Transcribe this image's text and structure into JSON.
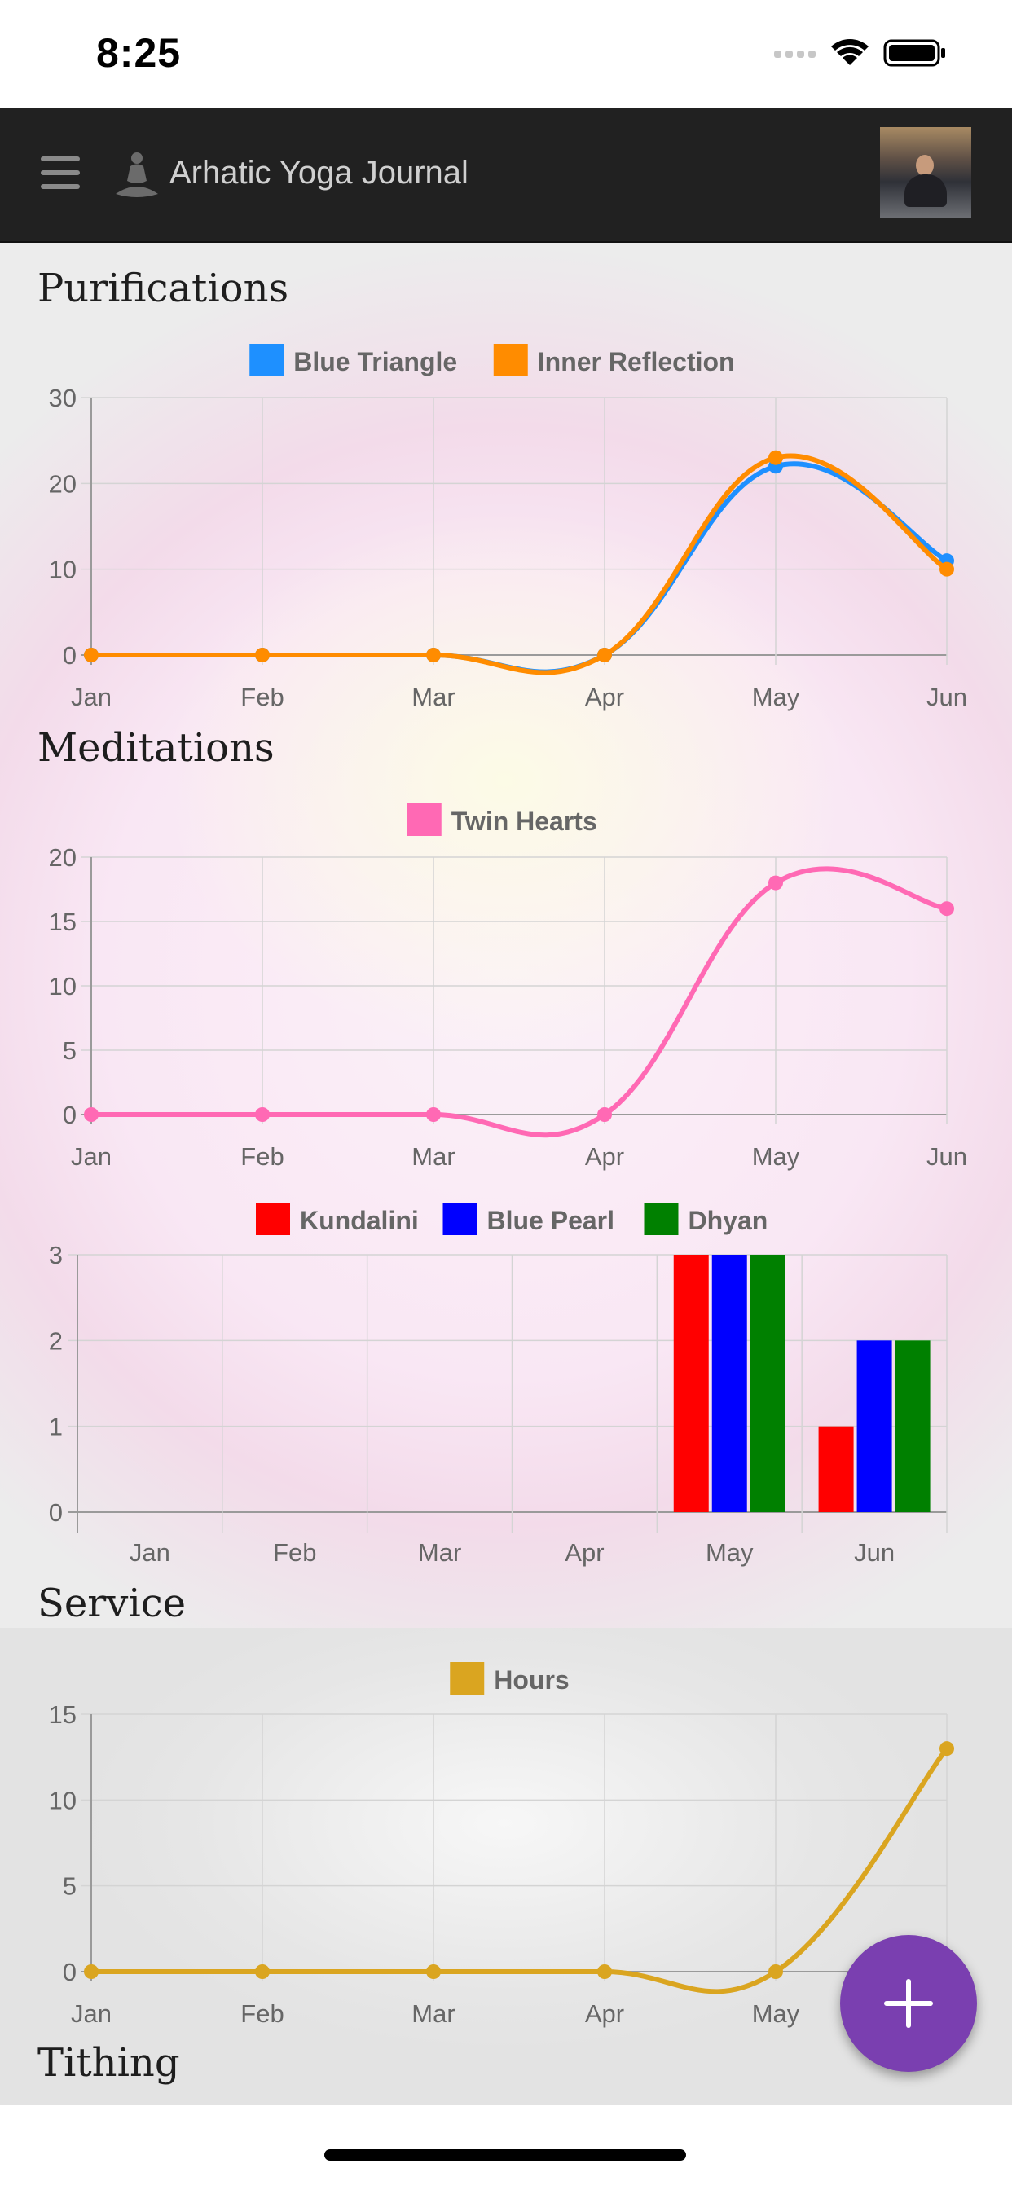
{
  "status_bar": {
    "time": "8:25"
  },
  "header": {
    "title": "Arhatic Yoga Journal"
  },
  "sections": {
    "purifications": "Purifications",
    "meditations": "Meditations",
    "service": "Service",
    "tithing": "Tithing"
  },
  "colors": {
    "header_bg": "#212121",
    "fab": "#7a3fb0",
    "blue_triangle": "#1e90ff",
    "inner_reflection": "#ff8c00",
    "twin_hearts": "#ff69b4",
    "kundalini": "#ff0000",
    "blue_pearl": "#0000ff",
    "dhyan": "#008000",
    "hours": "#daa520"
  },
  "icons": {
    "menu": "hamburger-menu-icon",
    "logo": "meditating-figure-icon",
    "fab": "plus-icon"
  },
  "chart_data": [
    {
      "type": "line",
      "categories": [
        "Jan",
        "Feb",
        "Mar",
        "Apr",
        "May",
        "Jun"
      ],
      "series": [
        {
          "name": "Blue Triangle",
          "color": "#1e90ff",
          "values": [
            0,
            0,
            0,
            0,
            22,
            11
          ]
        },
        {
          "name": "Inner Reflection",
          "color": "#ff8c00",
          "values": [
            0,
            0,
            0,
            0,
            23,
            10
          ]
        }
      ],
      "ylim": [
        0,
        30
      ],
      "yticks": [
        0,
        10,
        20,
        30
      ],
      "grid": true,
      "legend": "top-center"
    },
    {
      "type": "line",
      "categories": [
        "Jan",
        "Feb",
        "Mar",
        "Apr",
        "May",
        "Jun"
      ],
      "series": [
        {
          "name": "Twin Hearts",
          "color": "#ff69b4",
          "values": [
            0,
            0,
            0,
            0,
            18,
            16
          ]
        }
      ],
      "ylim": [
        0,
        20
      ],
      "yticks": [
        0,
        5,
        10,
        15,
        20
      ],
      "grid": true,
      "legend": "top-center"
    },
    {
      "type": "bar",
      "categories": [
        "Jan",
        "Feb",
        "Mar",
        "Apr",
        "May",
        "Jun"
      ],
      "series": [
        {
          "name": "Kundalini",
          "color": "#ff0000",
          "values": [
            0,
            0,
            0,
            0,
            3,
            1
          ]
        },
        {
          "name": "Blue Pearl",
          "color": "#0000ff",
          "values": [
            0,
            0,
            0,
            0,
            3,
            2
          ]
        },
        {
          "name": "Dhyan",
          "color": "#008000",
          "values": [
            0,
            0,
            0,
            0,
            3,
            2
          ]
        }
      ],
      "ylim": [
        0,
        3
      ],
      "yticks": [
        0,
        1,
        2,
        3
      ],
      "grid": true,
      "legend": "top-center"
    },
    {
      "type": "line",
      "categories": [
        "Jan",
        "Feb",
        "Mar",
        "Apr",
        "May",
        "Jun"
      ],
      "series": [
        {
          "name": "Hours",
          "color": "#daa520",
          "values": [
            0,
            0,
            0,
            0,
            0,
            13
          ]
        }
      ],
      "ylim": [
        0,
        15
      ],
      "yticks": [
        0,
        5,
        10,
        15
      ],
      "grid": true,
      "legend": "top-center"
    }
  ]
}
